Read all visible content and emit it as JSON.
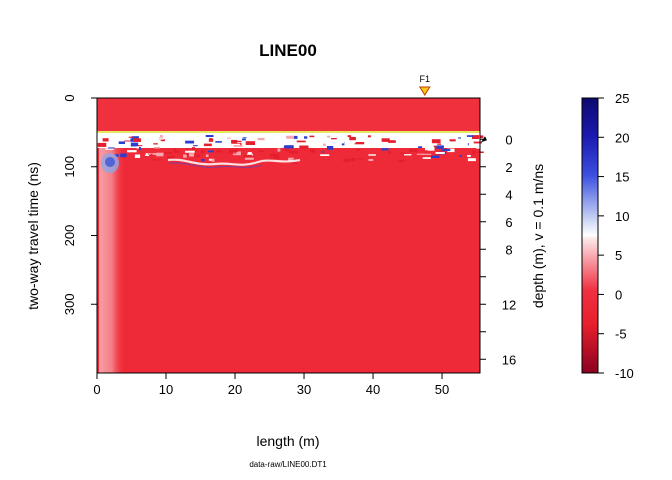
{
  "chart_data": {
    "type": "heatmap",
    "title": "LINE00",
    "xlabel": "length (m)",
    "ylabel_left": "two-way travel time (ns)",
    "ylabel_right": "depth (m),  v = 0.1 m/ns",
    "caption": "data-raw/LINE00.DT1",
    "xlim": [
      0,
      55.5
    ],
    "ylim": [
      0,
      400
    ],
    "x_ticks": [
      0,
      10,
      20,
      30,
      40,
      50
    ],
    "y_ticks": [
      0,
      100,
      200,
      300
    ],
    "depth_ticks": [
      0,
      2,
      4,
      6,
      8,
      10,
      12,
      14,
      16
    ],
    "depth_tick_labels": [
      "0",
      "2",
      "4",
      "6",
      "8",
      "",
      "12",
      "",
      "16"
    ],
    "depth_zero_time": 60,
    "velocity_m_per_ns": 0.1,
    "fiducial": {
      "label": "F1",
      "x": 47.5,
      "color": "#f5c518"
    },
    "surface_time": 50,
    "colorbar": {
      "min": -10,
      "max": 25,
      "ticks": [
        25,
        20,
        15,
        10,
        5,
        0,
        -5,
        -10
      ],
      "colors": {
        "low": "#8b0020",
        "mid_low": "#f01e2e",
        "white": "#ffffff",
        "mid_high": "#2b3fd6",
        "high": "#0d0a6e"
      }
    }
  }
}
